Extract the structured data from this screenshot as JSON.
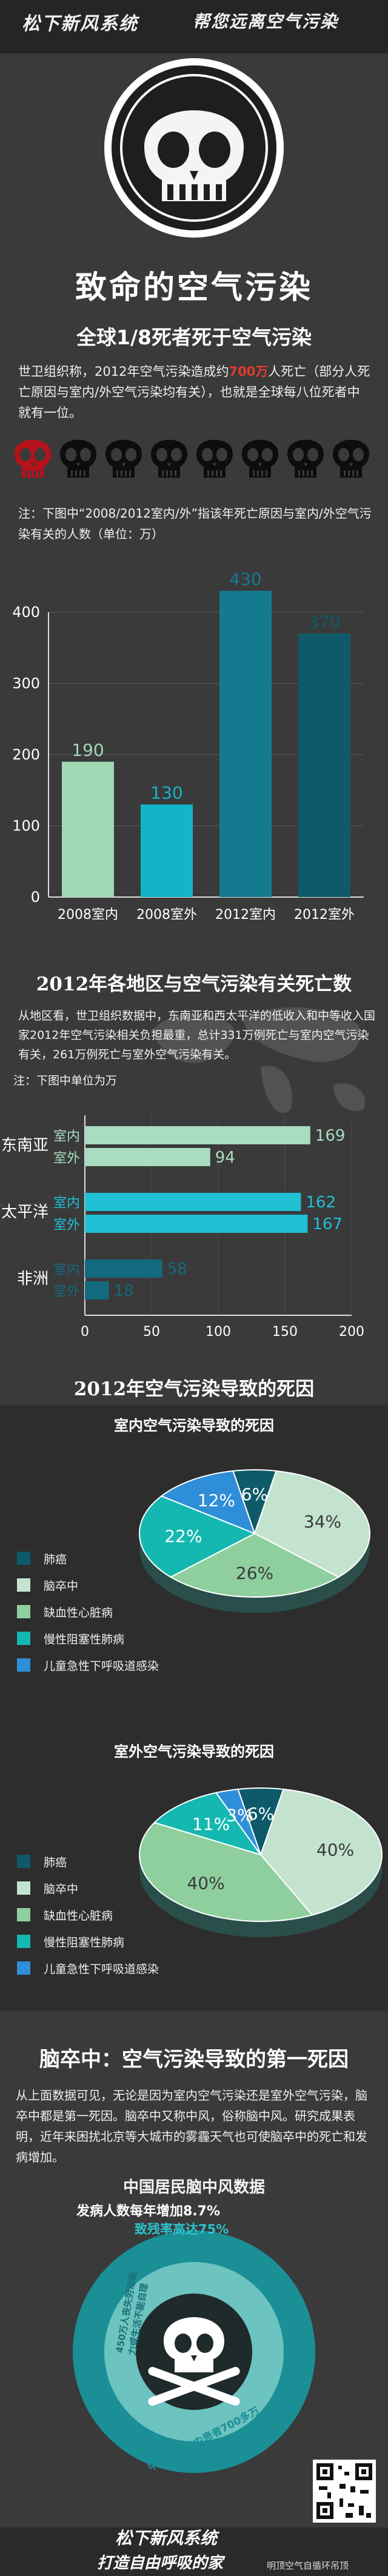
{
  "header": {
    "brand": "松下新风系统",
    "slogan": "帮您远离空气污染"
  },
  "hero": {
    "title": "致命的空气污染"
  },
  "section1": {
    "title": "全球1/8死者死于空气污染",
    "text_a": "世卫组织称，2012年空气污染造成约",
    "text_highlight": "700万",
    "text_b": "人死亡（部分人死亡原因与室内/外空气污染均有关），也就是全球每八位死者中就有一位。",
    "skull_total": 8,
    "skull_highlight": 1,
    "note": "注：下图中“2008/2012室内/外”指该年死亡原因与室内/外空气污染有关的人数（单位：万）"
  },
  "chart1": {
    "type": "bar",
    "categories": [
      "2008室内",
      "2008室外",
      "2012室内",
      "2012室外"
    ],
    "values": [
      190,
      130,
      430,
      370
    ],
    "ylim": [
      0,
      400
    ],
    "yticks": [
      0,
      100,
      200,
      300,
      400
    ],
    "colors": [
      "#9fd8b3",
      "#13b4c8",
      "#137a8f",
      "#0e5a6b"
    ]
  },
  "section2": {
    "title": "2012年各地区与空气污染有关死亡数",
    "text": "从地区看，世卫组织数据中，东南亚和西太平洋的低收入和中等收入国家2012年空气污染相关负担最重，总计331万例死亡与室内空气污染有关，261万例死亡与室外空气污染有关。",
    "note": "注：下图中单位为万"
  },
  "chart2": {
    "type": "bar",
    "orientation": "horizontal",
    "categories": [
      "东南亚",
      "西太平洋",
      "非洲"
    ],
    "series": [
      {
        "name": "室内",
        "values": [
          169,
          162,
          58
        ]
      },
      {
        "name": "室外",
        "values": [
          94,
          167,
          18
        ]
      }
    ],
    "xlim": [
      0,
      200
    ],
    "xticks": [
      0,
      50,
      100,
      150,
      200
    ],
    "colors": {
      "东南亚": [
        "#a9dcc0",
        "#a9dcc0"
      ],
      "西太平洋": [
        "#1fc0d4",
        "#1fc0d4"
      ],
      "非洲": [
        "#13697d",
        "#13697d"
      ]
    }
  },
  "section3": {
    "title": "2012年空气污染导致的死因"
  },
  "chart3": {
    "type": "pie",
    "title": "室内空气污染导致的死因",
    "labels": [
      "肺癌",
      "脑卒中",
      "缺血性心脏病",
      "慢性阻塞性肺病",
      "儿童急性下呼吸道感染"
    ],
    "values": [
      6,
      34,
      26,
      22,
      12
    ],
    "value_labels": [
      "6%",
      "34%",
      "26%",
      "22%",
      "12%"
    ],
    "colors": [
      "#0e5a6b",
      "#c3e3cf",
      "#8fcf9e",
      "#14b8b0",
      "#2f8ed8"
    ]
  },
  "chart4": {
    "type": "pie",
    "title": "室外空气污染导致的死因",
    "labels": [
      "肺癌",
      "脑卒中",
      "缺血性心脏病",
      "慢性阻塞性肺病",
      "儿童急性下呼吸道感染"
    ],
    "values": [
      6,
      40,
      40,
      11,
      3
    ],
    "value_labels": [
      "6%",
      "40%",
      "40%",
      "11%",
      "3%"
    ],
    "colors": [
      "#0e5a6b",
      "#c3e3cf",
      "#8fcf9e",
      "#14b8b0",
      "#2f8ed8"
    ]
  },
  "section4": {
    "title": "脑卒中：空气污染导致的第一死因",
    "text": "从上面数据可见，无论是因为室内空气污染还是室外空气污染，脑卒中都是第一死因。脑卒中又称中风，俗称脑中风。研究成果表明，近年来困扰北京等大城市的雾霾天气也可使脑卒中的死亡和发病增加。"
  },
  "chart5": {
    "title": "中国居民脑中风数据",
    "stat1": "发病人数每年增加8.7%",
    "stat2": "致残率高达75%",
    "ring1": "450万人丧失劳动能力或生活不能自理",
    "ring2": "中国目前卒中患者700多万"
  },
  "footer": {
    "brand": "松下新风系统",
    "slogan": "打造自由呼吸的家",
    "watermark": "明顶空气自循环吊顶"
  }
}
